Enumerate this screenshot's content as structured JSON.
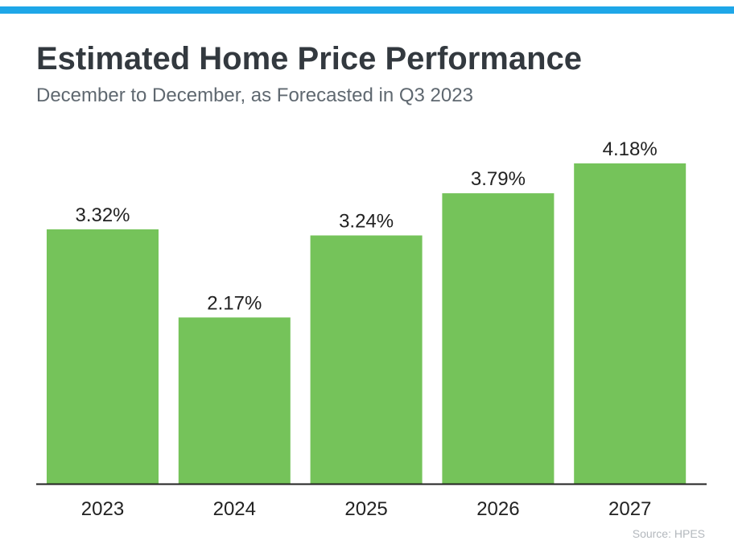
{
  "title": "Estimated Home Price Performance",
  "subtitle": "December to December, as Forecasted in Q3 2023",
  "source": "Source: HPES",
  "colors": {
    "accent_bar": "#1ea7e8",
    "bar_fill": "#75c35a",
    "axis": "#222222"
  },
  "chart_data": {
    "type": "bar",
    "title": "Estimated Home Price Performance",
    "subtitle": "December to December, as Forecasted in Q3 2023",
    "categories": [
      "2023",
      "2024",
      "2025",
      "2026",
      "2027"
    ],
    "values": [
      3.32,
      2.17,
      3.24,
      3.79,
      4.18
    ],
    "data_labels": [
      "3.32%",
      "2.17%",
      "3.24%",
      "3.79%",
      "4.18%"
    ],
    "unit": "%",
    "xlabel": "",
    "ylabel": "",
    "ylim": [
      0,
      4.18
    ],
    "grid": false,
    "legend": "none"
  }
}
